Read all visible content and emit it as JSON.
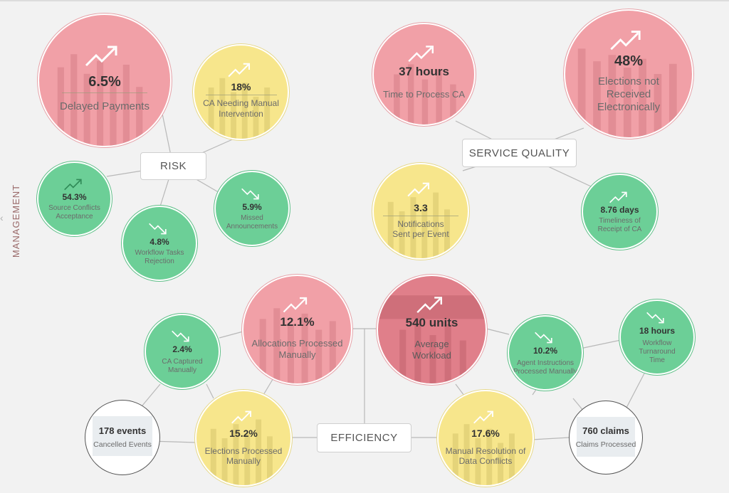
{
  "sidebar": {
    "label": "MANAGEMENT",
    "collapse_icon": "chevron-left-icon"
  },
  "colors": {
    "red": "#f1a0a7",
    "yellow": "#f7e68c",
    "green": "#6ccf97",
    "gray": "#ffffff",
    "dark_red": "#e07f8a"
  },
  "hubs": {
    "risk": "RISK",
    "service_quality": "SERVICE QUALITY",
    "efficiency": "EFFICIENCY"
  },
  "risk": {
    "delayed_payments": {
      "value": "6.5%",
      "label": "Delayed Payments",
      "trend": "up-trend-icon"
    },
    "ca_manual": {
      "value": "18%",
      "label": "CA Needing Manual Intervention",
      "trend": "up-trend-icon"
    },
    "source_conflicts": {
      "value": "54.3%",
      "label": "Source Conflicts Acceptance",
      "trend": "up-trend-icon"
    },
    "missed_announcements": {
      "value": "5.9%",
      "label": "Missed Announcements",
      "trend": "down-trend-icon"
    },
    "workflow_rejection": {
      "value": "4.8%",
      "label": "Workflow Tasks Rejection",
      "trend": "down-trend-icon"
    }
  },
  "service_quality": {
    "time_to_process": {
      "value": "37 hours",
      "label": "Time to Process CA",
      "trend": "up-trend-icon"
    },
    "elections_not_received": {
      "value": "48%",
      "label": "Elections not Received Electronically",
      "trend": "up-trend-icon"
    },
    "notifications": {
      "value": "3.3",
      "label": "Notifications Sent per Event",
      "trend": "up-trend-icon"
    },
    "timeliness": {
      "value": "8.76 days",
      "label": "Timeliness of Receipt of CA",
      "trend": "up-trend-icon"
    }
  },
  "efficiency": {
    "allocations": {
      "value": "12.1%",
      "label": "Allocations Processed Manually",
      "trend": "up-trend-icon"
    },
    "workload": {
      "value": "540 units",
      "label": "Average Workload",
      "trend": "up-trend-icon"
    },
    "ca_captured": {
      "value": "2.4%",
      "label": "CA Captured Manually",
      "trend": "down-trend-icon"
    },
    "cancelled_events": {
      "value": "178 events",
      "label": "Cancelled Events"
    },
    "elections_manual": {
      "value": "15.2%",
      "label": "Elections Processed Manually",
      "trend": "up-trend-icon"
    },
    "manual_resolution": {
      "value": "17.6%",
      "label": "Manual Resolution of Data Conflicts",
      "trend": "up-trend-icon"
    },
    "agent_instructions": {
      "value": "10.2%",
      "label": "Agent Instructions Processed Manually",
      "trend": "down-trend-icon"
    },
    "workflow_turnaround": {
      "value": "18 hours",
      "label": "Workflow Turnaround Time",
      "trend": "down-trend-icon"
    },
    "claims_processed": {
      "value": "760 claims",
      "label": "Claims Processed"
    }
  }
}
